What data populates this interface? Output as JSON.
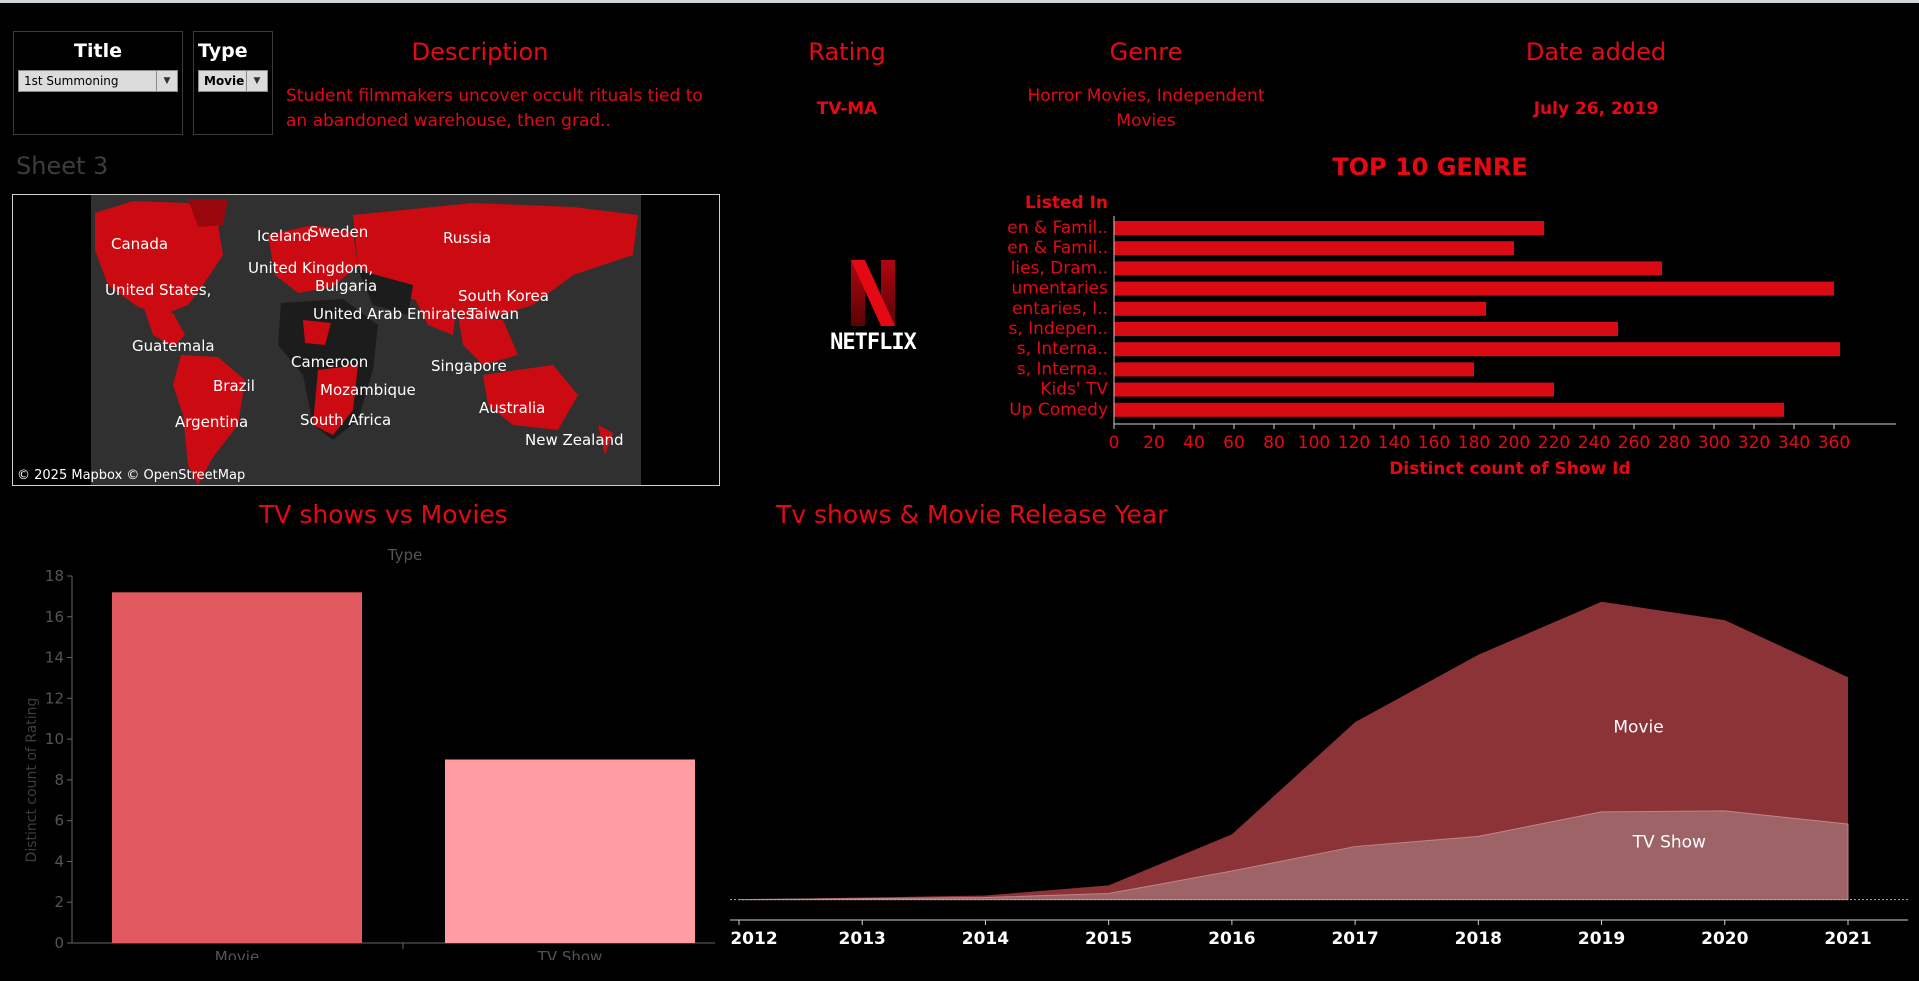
{
  "filters": {
    "title": {
      "label": "Title",
      "value": "1st Summoning"
    },
    "type": {
      "label": "Type",
      "value": "Movie"
    }
  },
  "details": {
    "description_header": "Description",
    "description_value": "Student filmmakers uncover occult rituals tied to an abandoned warehouse, then grad..",
    "rating_header": "Rating",
    "rating_value": "TV-MA",
    "genre_header": "Genre",
    "genre_value": "Horror Movies, Independent Movies",
    "date_header": "Date added",
    "date_value": "July 26, 2019"
  },
  "map": {
    "sheet_title": "Sheet 3",
    "attribution": "© 2025 Mapbox © OpenStreetMap",
    "countries": [
      "Canada",
      "Iceland",
      "Sweden",
      "Russia",
      "United Kingdom,",
      "Bulgaria",
      "United States,",
      "South Korea",
      "United Arab Emirates",
      "Taiwan",
      "Guatemala",
      "Cameroon",
      "Singapore",
      "Brazil",
      "Mozambique",
      "Australia",
      "Argentina",
      "South Africa",
      "New Zealand"
    ]
  },
  "logo": {
    "letter": "N",
    "wordmark": "NETFLIX"
  },
  "colors": {
    "accent": "#e50914",
    "movie_bar": "#e05a5f",
    "tvshow_bar": "#ff9da3",
    "movie_area": "#8b3336",
    "tvshow_area": "#9e6366"
  },
  "chart_data": [
    {
      "type": "bar",
      "orientation": "horizontal",
      "title": "TOP 10 GENRE",
      "row_header": "Listed In",
      "categories": [
        "en & Famil..",
        "en & Famil..",
        "lies, Dram..",
        "umentaries",
        "entaries, I..",
        "s, Indepen..",
        "s, Interna..",
        "s, Interna..",
        "Kids' TV",
        "Up Comedy"
      ],
      "values": [
        215,
        200,
        274,
        360,
        186,
        252,
        363,
        180,
        220,
        335
      ],
      "xlabel": "Distinct count of Show Id",
      "xlim": [
        0,
        380
      ],
      "xticks": [
        0,
        20,
        40,
        60,
        80,
        100,
        120,
        140,
        160,
        180,
        200,
        220,
        240,
        260,
        280,
        300,
        320,
        340,
        360
      ]
    },
    {
      "type": "bar",
      "title": "TV shows vs Movies",
      "header": "Type",
      "categories": [
        "Movie",
        "TV Show"
      ],
      "values": [
        17.2,
        9.0
      ],
      "ylabel": "Distinct count of Rating",
      "ylim": [
        0,
        18
      ],
      "yticks": [
        0,
        2,
        4,
        6,
        8,
        10,
        12,
        14,
        16,
        18
      ]
    },
    {
      "type": "area",
      "title": "Tv shows & Movie  Release Year",
      "x": [
        "2012",
        "2013",
        "2014",
        "2015",
        "2016",
        "2017",
        "2018",
        "2019",
        "2020",
        "2021"
      ],
      "series": [
        {
          "name": "Movie",
          "values": [
            1.0,
            1.1,
            1.2,
            1.7,
            4.2,
            9.7,
            13.0,
            15.6,
            14.7,
            11.9
          ]
        },
        {
          "name": "TV Show",
          "values": [
            1.0,
            1.05,
            1.1,
            1.3,
            2.4,
            3.6,
            4.1,
            5.3,
            5.35,
            4.7
          ]
        }
      ],
      "ylim": [
        0,
        17
      ]
    }
  ]
}
